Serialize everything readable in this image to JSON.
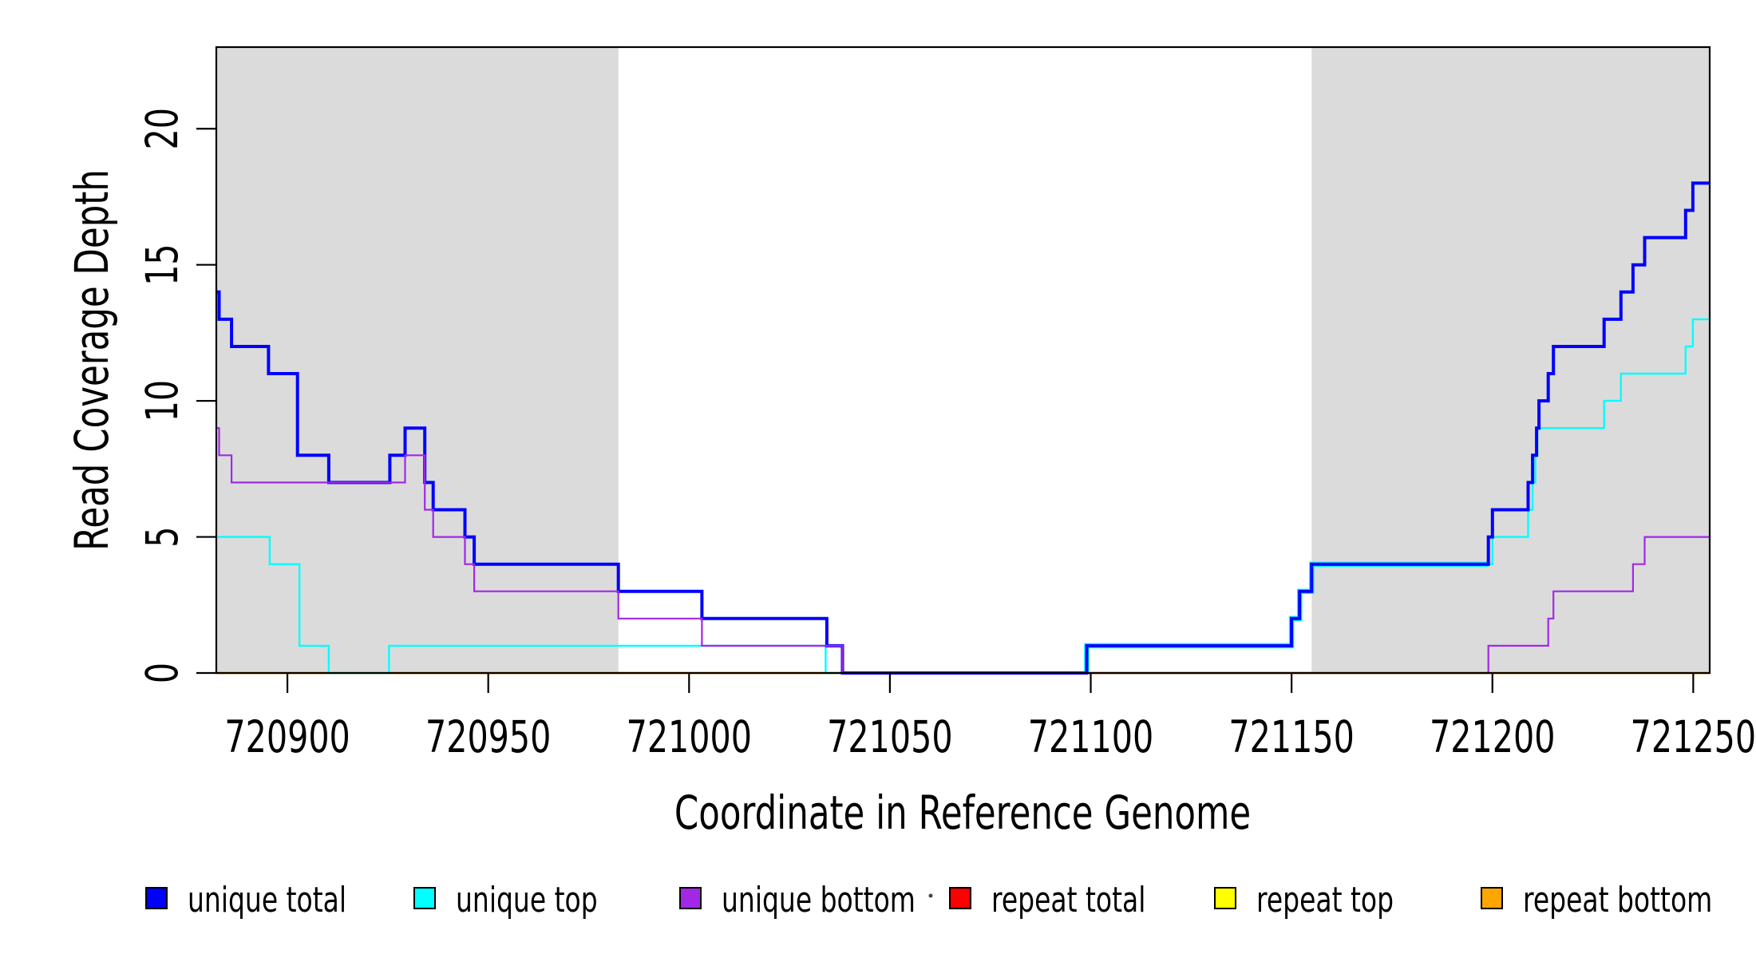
{
  "figure": {
    "background": "#FFFFFF",
    "plot_box_color": "#000000"
  },
  "chart_data": {
    "type": "line",
    "subtype": "step-coverage",
    "title": "",
    "xlabel": "Coordinate in Reference Genome",
    "ylabel": "Read Coverage Depth",
    "x_range": [
      720882.3,
      721254.1
    ],
    "y_range": [
      0,
      23
    ],
    "x_ticks": [
      720900,
      720950,
      721000,
      721050,
      721100,
      721150,
      721200,
      721250
    ],
    "x_tick_labels": [
      "720900",
      "720950",
      "721000",
      "721050",
      "721100",
      "721150",
      "721200",
      "721250"
    ],
    "y_ticks": [
      0,
      5,
      10,
      15,
      20
    ],
    "y_tick_labels": [
      "0",
      "5",
      "10",
      "15",
      "20"
    ],
    "grid": false,
    "shaded_regions": [
      {
        "name": "left-gray-band",
        "x0": 720882.3,
        "x1": 720982.4,
        "color": "#DBDBDB"
      },
      {
        "name": "right-gray-band",
        "x0": 721155.0,
        "x1": 721254.1,
        "color": "#DBDBDB"
      }
    ],
    "series": [
      {
        "name": "repeat total",
        "color": "#FF0000",
        "width": 2.4,
        "points": [
          [
            720882.3,
            0
          ]
        ]
      },
      {
        "name": "repeat top",
        "color": "#FFFF00",
        "width": 2.2,
        "points": [
          [
            720882.3,
            0
          ]
        ]
      },
      {
        "name": "repeat bottom",
        "color": "#FFA500",
        "width": 2.4,
        "points": [
          [
            720882.3,
            0
          ]
        ]
      },
      {
        "name": "unique top",
        "color": "#00FFFF",
        "width": 2.4,
        "points": [
          [
            720882.3,
            5
          ],
          [
            720895.6,
            4
          ],
          [
            720903.0,
            1
          ],
          [
            720910.3,
            0
          ],
          [
            720925.3,
            1
          ],
          [
            721034.0,
            0
          ],
          [
            721099.0,
            1
          ],
          [
            721150.0,
            2
          ],
          [
            721152.0,
            3
          ],
          [
            721155.0,
            4
          ],
          [
            721200.0,
            5
          ],
          [
            721208.9,
            6
          ],
          [
            721210.0,
            7
          ],
          [
            721210.7,
            8
          ],
          [
            721211.2,
            9
          ],
          [
            721227.8,
            10
          ],
          [
            721232.0,
            11
          ],
          [
            721248.1,
            12
          ],
          [
            721249.9,
            13
          ]
        ]
      },
      {
        "name": "unique top halo",
        "color": "#00FFFF",
        "width": 6.5,
        "x_end": 721199.0,
        "points": [
          [
            721099.0,
            0
          ],
          [
            721099.0,
            1
          ],
          [
            721150.0,
            2
          ],
          [
            721152.0,
            3
          ],
          [
            721155.0,
            4
          ]
        ]
      },
      {
        "name": "unique total",
        "color": "#0000FF",
        "width": 4,
        "points": [
          [
            720882.3,
            14
          ],
          [
            720883.0,
            13
          ],
          [
            720886.1,
            12
          ],
          [
            720895.3,
            11
          ],
          [
            720902.5,
            8
          ],
          [
            720910.3,
            7
          ],
          [
            720925.5,
            8
          ],
          [
            720929.3,
            9
          ],
          [
            720934.2,
            7
          ],
          [
            720936.3,
            6
          ],
          [
            720944.2,
            5
          ],
          [
            720946.5,
            4
          ],
          [
            720982.4,
            3
          ],
          [
            721003.2,
            2
          ],
          [
            721034.3,
            1
          ],
          [
            721038.2,
            0
          ],
          [
            721099.0,
            1
          ],
          [
            721150.0,
            2
          ],
          [
            721152.0,
            3
          ],
          [
            721155.0,
            4
          ],
          [
            721199.0,
            5
          ],
          [
            721200.0,
            6
          ],
          [
            721208.9,
            7
          ],
          [
            721210.0,
            8
          ],
          [
            721211.0,
            9
          ],
          [
            721211.6,
            10
          ],
          [
            721213.9,
            11
          ],
          [
            721215.2,
            12
          ],
          [
            721227.8,
            13
          ],
          [
            721232.0,
            14
          ],
          [
            721235.0,
            15
          ],
          [
            721237.9,
            16
          ],
          [
            721248.1,
            17
          ],
          [
            721249.9,
            18
          ]
        ]
      },
      {
        "name": "unique bottom",
        "color": "#A228E6",
        "width": 2.2,
        "points": [
          [
            720882.3,
            9
          ],
          [
            720883.0,
            8
          ],
          [
            720886.1,
            7
          ],
          [
            720929.3,
            8
          ],
          [
            720934.2,
            6
          ],
          [
            720936.3,
            5
          ],
          [
            720944.2,
            4
          ],
          [
            720946.5,
            3
          ],
          [
            720982.4,
            2
          ],
          [
            721003.2,
            1
          ],
          [
            721038.2,
            0
          ],
          [
            721199.0,
            1
          ],
          [
            721213.9,
            2
          ],
          [
            721215.2,
            3
          ],
          [
            721235.0,
            4
          ],
          [
            721237.9,
            5
          ]
        ]
      }
    ],
    "legend": {
      "position": "bottom",
      "entries": [
        {
          "label": "unique total",
          "color": "#0000FF"
        },
        {
          "label": "unique top",
          "color": "#00FFFF"
        },
        {
          "label": "unique bottom",
          "color": "#A228E6"
        },
        {
          "label": "repeat total",
          "color": "#FF0000"
        },
        {
          "label": "repeat top",
          "color": "#FFFF00"
        },
        {
          "label": "repeat bottom",
          "color": "#FFA500"
        }
      ],
      "stray_dot_color": "#444444"
    }
  }
}
